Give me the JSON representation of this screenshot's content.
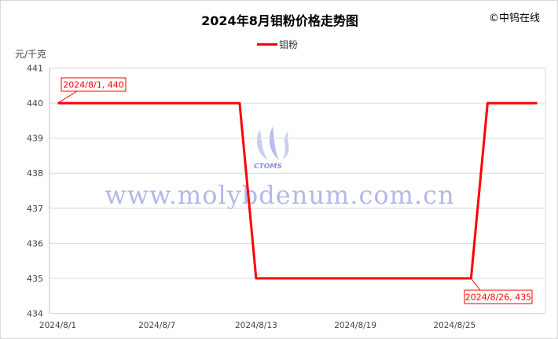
{
  "title": "2024年8月钼粉价格走势图",
  "copyright": "©中钨在线",
  "watermark": "www.molybdenum.com.cn",
  "logo_text": "CTOMS",
  "chart_data": {
    "type": "line",
    "title": "2024年8月钼粉价格走势图",
    "ylabel": "元/千克",
    "ylim": [
      434,
      441
    ],
    "yticks": [
      434,
      435,
      436,
      437,
      438,
      439,
      440,
      441
    ],
    "xtick_labels": [
      "2024/8/1",
      "2024/8/7",
      "2024/8/13",
      "2024/8/19",
      "2024/8/25"
    ],
    "grid": "horizontal",
    "legend": "top-center",
    "x": [
      "2024/8/1",
      "2024/8/2",
      "2024/8/3",
      "2024/8/4",
      "2024/8/5",
      "2024/8/6",
      "2024/8/7",
      "2024/8/8",
      "2024/8/9",
      "2024/8/10",
      "2024/8/11",
      "2024/8/12",
      "2024/8/13",
      "2024/8/14",
      "2024/8/15",
      "2024/8/16",
      "2024/8/17",
      "2024/8/18",
      "2024/8/19",
      "2024/8/20",
      "2024/8/21",
      "2024/8/22",
      "2024/8/23",
      "2024/8/24",
      "2024/8/25",
      "2024/8/26",
      "2024/8/27",
      "2024/8/28",
      "2024/8/29",
      "2024/8/30"
    ],
    "series": [
      {
        "name": "钼粉",
        "color": "#ff0000",
        "values": [
          440,
          440,
          440,
          440,
          440,
          440,
          440,
          440,
          440,
          440,
          440,
          440,
          435,
          435,
          435,
          435,
          435,
          435,
          435,
          435,
          435,
          435,
          435,
          435,
          435,
          435,
          440,
          440,
          440,
          440
        ]
      }
    ],
    "annotations": [
      {
        "text": "2024/8/1, 440",
        "index": 0
      },
      {
        "text": "2024/8/26, 435",
        "index": 25
      }
    ]
  }
}
